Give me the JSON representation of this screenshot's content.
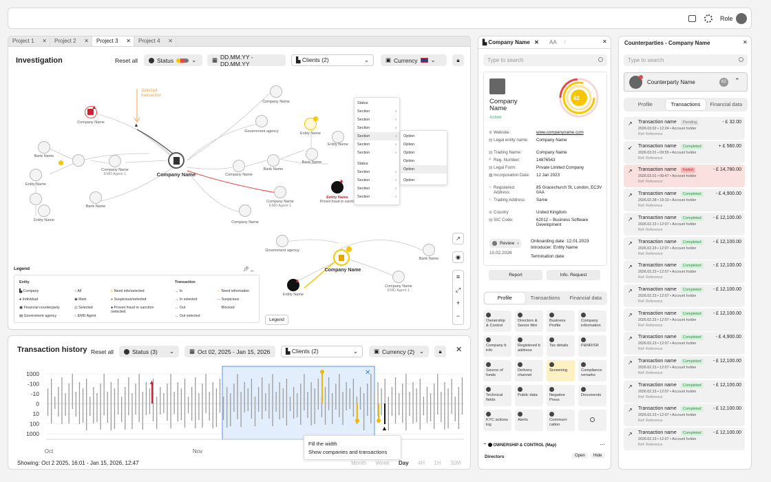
{
  "header": {
    "role": "Role"
  },
  "investigation": {
    "tabs": [
      "Project 1",
      "Project 2",
      "Project 3",
      "Project 4"
    ],
    "title": "Investigation",
    "reset": "Reset all",
    "status": "Status",
    "dates": "DD.MM.YY - DD.MM.YY",
    "clients": "Clients (2)",
    "currency": "Currency",
    "selected_transaction": "Selected\ntransaction",
    "nodes": {
      "company_name": "Company Name",
      "government_agency": "Government agency",
      "bank_name": "Bank Name",
      "entity_name": "Entity Name",
      "emd_agent": "EMD Agent 1",
      "proven": "Proven fraud or sanction"
    },
    "context_menu": {
      "status": "Status",
      "section": "Section",
      "option": "Option"
    },
    "legend": {
      "title": "Legend",
      "entity": "Entity",
      "company": "Company",
      "individual": "Individual",
      "financial": "Financial counterparty",
      "government": "Government agency",
      "all": "All",
      "main": "Main",
      "selected": "Selected",
      "emd": "EMD Agent",
      "need_info": "Need info/selected",
      "suspicious": "Suspicious/selected",
      "proven": "Proven fraud or sanction /selected",
      "transaction": "Transaction",
      "in": "In",
      "in_selected": "In selected",
      "out": "Out",
      "out_selected": "Out selected",
      "need_information": "Need information",
      "suspicious2": "Suspicious",
      "blocked": "Blocked",
      "button": "Legend"
    }
  },
  "history": {
    "title": "Transaction history",
    "reset": "Reset all",
    "status": "Status (3)",
    "dates": "Oct 02, 2025 - Jan 15, 2026",
    "clients": "Clients (2)",
    "currency": "Currency (2)",
    "showing": "Showing: Oct 2 2025, 16:01 - Jan 15, 2026, 12:47",
    "y_ticks": [
      "1000",
      "-100",
      "-10",
      "0",
      "10",
      "100",
      "1000"
    ],
    "x_labels": [
      "Oct",
      "Nov"
    ],
    "tooltip": [
      "Fill the width",
      "Show companies and transactions"
    ],
    "periods": [
      "Month",
      "Week",
      "Day",
      "4H",
      "1H",
      "30M"
    ],
    "bars": [
      2,
      4,
      6,
      8,
      10,
      1,
      3,
      5,
      7,
      9,
      2,
      4,
      6,
      8,
      1,
      3,
      5,
      7,
      9,
      2,
      4,
      6,
      8,
      10,
      1,
      3,
      5,
      7,
      9,
      2,
      4,
      6,
      8,
      1,
      3,
      5,
      7,
      9,
      2,
      4,
      6,
      8,
      10,
      1,
      3,
      5,
      7,
      9,
      2,
      4,
      6,
      8,
      1,
      3,
      5,
      7,
      9,
      2,
      4,
      6,
      8,
      10,
      1,
      3,
      5,
      7,
      9,
      2,
      4,
      6,
      8,
      1,
      3,
      5,
      7,
      9,
      2,
      4,
      6,
      8,
      10,
      1,
      3,
      5,
      7,
      9,
      2,
      4,
      6,
      8,
      1,
      3,
      5,
      7,
      9,
      2,
      4,
      6,
      8,
      10,
      1,
      3,
      5,
      7,
      9,
      2,
      4,
      6,
      8,
      1,
      3,
      5,
      7,
      9,
      2,
      4,
      6,
      8,
      10
    ]
  },
  "company": {
    "tabs": [
      "Company Name",
      "AA"
    ],
    "search_placeholder": "Type to search",
    "name": "Company Name",
    "status": "Active",
    "score": "62",
    "fields": [
      {
        "k": "Website:",
        "v": "www.companyname.com"
      },
      {
        "k": "Legal entity name:",
        "v": "Company Name"
      },
      {
        "k": "Trading Name:",
        "v": "Company Name"
      },
      {
        "k": "Reg. Number:",
        "v": "14876543"
      },
      {
        "k": "Legal Form:",
        "v": "Private Limited Company"
      },
      {
        "k": "Incorporation Date:",
        "v": "12 Jan 2023"
      },
      {
        "k": "Registered Address:",
        "v": "85 Gracechurch St, London, EC3V 0AA"
      },
      {
        "k": "Trading Address:",
        "v": "Same"
      },
      {
        "k": "Country",
        "v": "United Kingdom"
      },
      {
        "k": "SIC Code:",
        "v": "62012 – Business Software Development"
      }
    ],
    "review": "Review",
    "review_date": "10.02.2026",
    "onboarding": "Onboarding date: 12.01.2023",
    "introducer": "Introducer: Entity Name",
    "termination": "Termination date:",
    "report": "Report",
    "info_request": "Info. Request",
    "sub_tabs": [
      "Profile",
      "Transactions",
      "Financial data"
    ],
    "sections": [
      "Ownership & Control",
      "Directors & Senior Mnt",
      "Business Profile",
      "Company information",
      "Company b info",
      "Registered b address",
      "Tax details",
      "P&NR/SR",
      "Source of funds",
      "Delivery channel",
      "Screening",
      "Compliance remarks",
      "Technical fields",
      "Public data",
      "Negative Press",
      "Documents",
      "KYC actions log",
      "Alerts",
      "Communi-cation",
      ""
    ],
    "ownership": "OWNERSHIP & CONTROL (Map)",
    "directors": "Directors",
    "open": "Open",
    "hide": "Hide"
  },
  "counterparties": {
    "title": "Counterparties - Company Name",
    "search_placeholder": "Type to search",
    "name": "Counterparty Name",
    "count": "62",
    "tabs": [
      "Profile",
      "Transactions",
      "Financial data"
    ],
    "transactions": [
      {
        "name": "Transaction name",
        "status": "Pending",
        "meta": "2026.03.02 • 12:24 • Account holder",
        "ref": "Ref: Reference",
        "amount": "- £ 32.00"
      },
      {
        "name": "Transaction name",
        "status": "Completed",
        "meta": "2026.03.01 • 09:55 • Account holder",
        "ref": "Ref: Reference",
        "amount": "+ £ 560.00"
      },
      {
        "name": "Transaction name",
        "status": "Failed",
        "meta": "2026.03.01 • 09:47 • Account holder",
        "ref": "Ref: Reference",
        "amount": "- £ 14,780.00"
      },
      {
        "name": "Transaction name",
        "status": "Completed",
        "meta": "2026.02.28 • 19:10 • Account holder",
        "ref": "Ref: Reference",
        "amount": "- £ 4,900.00"
      },
      {
        "name": "Transaction name",
        "status": "Completed",
        "meta": "2026.02.23 • 12:07 • Account holder",
        "ref": "Ref: Reference",
        "amount": "- £ 12,100.00"
      },
      {
        "name": "Transaction name",
        "status": "Completed",
        "meta": "2026.02.23 • 12:07 • Account holder",
        "ref": "Ref: Reference",
        "amount": "- £ 12,100.00"
      },
      {
        "name": "Transaction name",
        "status": "Completed",
        "meta": "2026.02.23 • 12:07 • Account holder",
        "ref": "Ref: Reference",
        "amount": "- £ 12,100.00"
      },
      {
        "name": "Transaction name",
        "status": "Completed",
        "meta": "2026.02.23 • 12:07 • Account holder",
        "ref": "Ref: Reference",
        "amount": "- £ 12,100.00"
      },
      {
        "name": "Transaction name",
        "status": "Completed",
        "meta": "2026.02.23 • 12:07 • Account holder",
        "ref": "Ref: Reference",
        "amount": "- £ 12,100.00"
      },
      {
        "name": "Transaction name",
        "status": "Completed",
        "meta": "2026.02.23 • 12:07 • Account holder",
        "ref": "Ref: Reference",
        "amount": "- £ 4,900.00"
      },
      {
        "name": "Transaction name",
        "status": "Completed",
        "meta": "2026.02.23 • 12:07 • Account holder",
        "ref": "Ref: Reference",
        "amount": "- £ 12,100.00"
      },
      {
        "name": "Transaction name",
        "status": "Completed",
        "meta": "2026.02.23 • 12:07 • Account holder",
        "ref": "Ref: Reference",
        "amount": "- £ 12,100.00"
      },
      {
        "name": "Transaction name",
        "status": "Completed",
        "meta": "2026.02.23 • 12:07 • Account holder",
        "ref": "Ref: Reference",
        "amount": "- £ 12,100.00"
      },
      {
        "name": "Transaction name",
        "status": "Completed",
        "meta": "2026.02.23 • 12:07 • Account holder",
        "ref": "Ref: Reference",
        "amount": "- £ 12,100.00"
      }
    ]
  }
}
